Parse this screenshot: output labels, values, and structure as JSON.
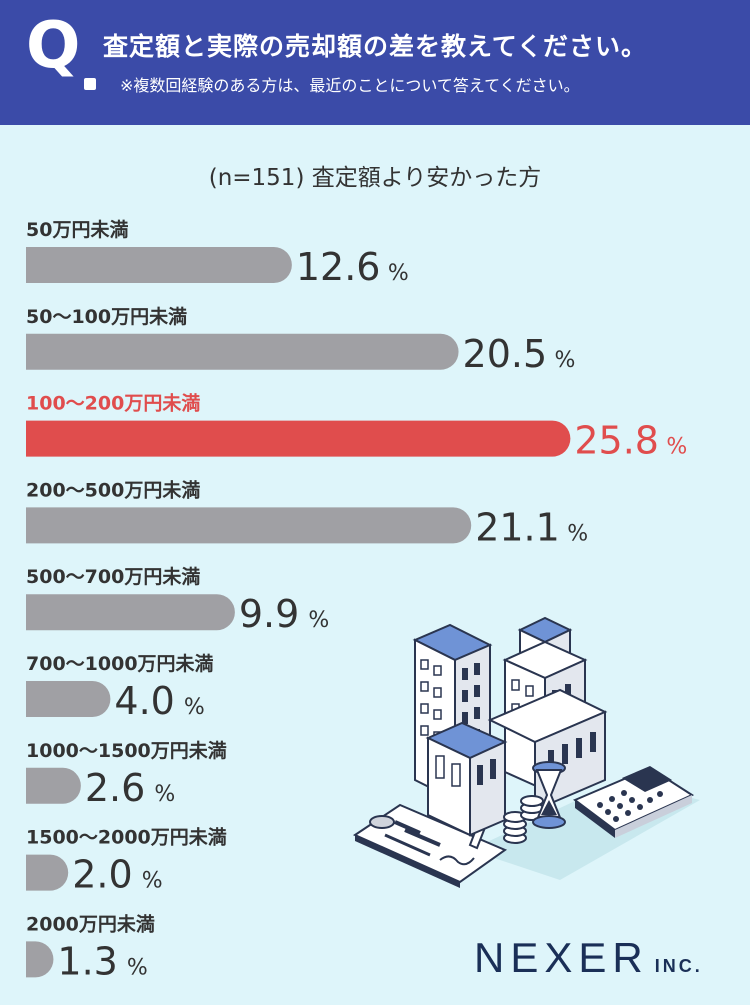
{
  "header": {
    "q_mark": "Q",
    "question": "査定額と実際の売却額の差を教えてください。",
    "note": "※複数回経験のある方は、最近のことについて答えてください。"
  },
  "subtitle": "(n=151) 査定額より安かった方",
  "colors": {
    "header_bg": "#3b4ba8",
    "page_bg": "#def5fa",
    "bar": "#a0a0a4",
    "highlight": "#e04d4d",
    "text": "#333333"
  },
  "chart_data": {
    "type": "bar",
    "orientation": "horizontal",
    "title": "(n=151) 査定額より安かった方",
    "unit": "%",
    "categories": [
      "50万円未満",
      "50～100万円未満",
      "100～200万円未満",
      "200～500万円未満",
      "500～700万円未満",
      "700～1000万円未満",
      "1000～1500万円未満",
      "1500～2000万円未満",
      "2000万円未満"
    ],
    "values": [
      12.6,
      20.5,
      25.8,
      21.1,
      9.9,
      4.0,
      2.6,
      2.0,
      1.3
    ],
    "value_labels": [
      "12.6",
      "20.5",
      "25.8",
      "21.1",
      "9.9",
      "4.0",
      "2.6",
      "2.0",
      "1.3"
    ],
    "highlight_index": 2
  },
  "illustration": {
    "icon": "buildings-calculator-hourglass-coins-document-illustration"
  },
  "logo": {
    "main": "NEXER",
    "sub": "INC."
  }
}
